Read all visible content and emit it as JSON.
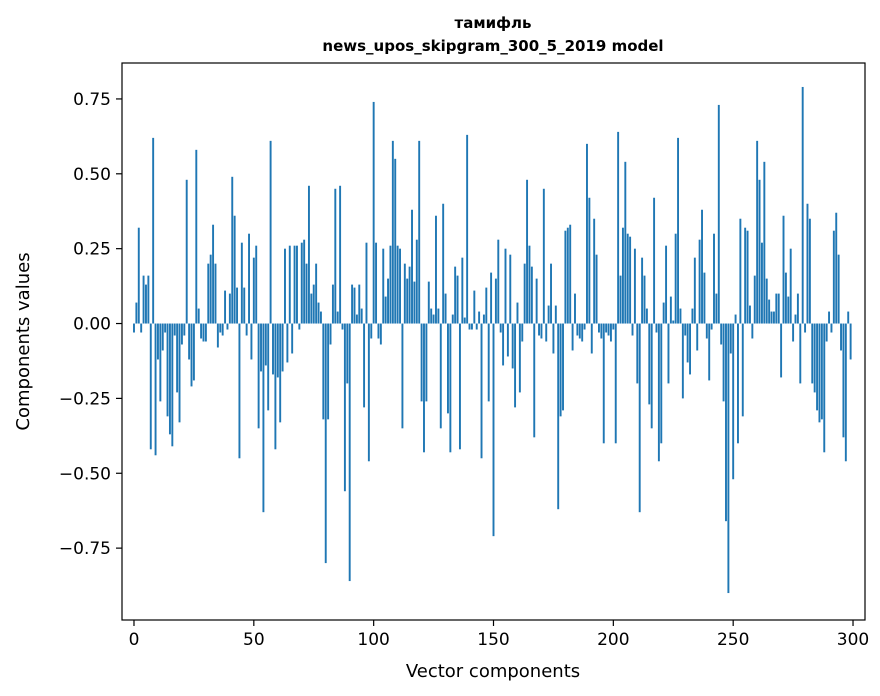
{
  "chart_data": {
    "type": "bar",
    "title": "тамифль",
    "subtitle": "news_upos_skipgram_300_5_2019 model",
    "xlabel": "Vector components",
    "ylabel": "Components values",
    "xlim": [
      -5,
      305
    ],
    "ylim": [
      -0.99,
      0.87
    ],
    "xticks": [
      0,
      50,
      100,
      150,
      200,
      250,
      300
    ],
    "xtick_labels": [
      "0",
      "50",
      "100",
      "150",
      "200",
      "250",
      "300"
    ],
    "yticks": [
      -0.75,
      -0.5,
      -0.25,
      0.0,
      0.25,
      0.5,
      0.75
    ],
    "ytick_labels": [
      "−0.75",
      "−0.50",
      "−0.25",
      "0.00",
      "0.25",
      "0.50",
      "0.75"
    ],
    "bar_color": "#1f77b4",
    "grid": false,
    "x": "0..299",
    "values": [
      -0.03,
      0.07,
      0.32,
      -0.03,
      0.16,
      0.13,
      0.16,
      -0.42,
      0.62,
      -0.44,
      -0.12,
      -0.26,
      -0.09,
      -0.03,
      -0.31,
      -0.37,
      -0.41,
      -0.04,
      -0.23,
      -0.33,
      -0.07,
      -0.04,
      0.48,
      -0.12,
      -0.21,
      -0.19,
      0.58,
      0.05,
      -0.05,
      -0.06,
      -0.06,
      0.2,
      0.23,
      0.33,
      0.2,
      -0.08,
      -0.03,
      -0.04,
      0.11,
      -0.02,
      0.1,
      0.49,
      0.36,
      0.12,
      -0.45,
      0.27,
      0.12,
      -0.04,
      0.3,
      -0.12,
      0.22,
      0.26,
      -0.35,
      -0.16,
      -0.63,
      -0.14,
      -0.29,
      0.61,
      -0.17,
      -0.42,
      -0.18,
      -0.33,
      -0.16,
      0.25,
      -0.13,
      0.26,
      -0.1,
      0.26,
      0.26,
      -0.02,
      0.27,
      0.28,
      0.2,
      0.46,
      0.1,
      0.13,
      0.2,
      0.07,
      0.04,
      -0.32,
      -0.8,
      -0.32,
      -0.07,
      0.13,
      0.45,
      0.04,
      0.46,
      -0.02,
      -0.56,
      -0.2,
      -0.86,
      0.13,
      0.12,
      0.03,
      0.13,
      0.05,
      -0.28,
      0.27,
      -0.46,
      -0.05,
      0.74,
      0.27,
      -0.05,
      -0.07,
      0.25,
      0.09,
      0.15,
      0.26,
      0.61,
      0.55,
      0.26,
      0.25,
      -0.35,
      0.2,
      0.15,
      0.19,
      0.38,
      0.14,
      0.28,
      0.61,
      -0.26,
      -0.43,
      -0.26,
      0.14,
      0.05,
      0.03,
      0.36,
      0.05,
      -0.35,
      0.4,
      0.1,
      -0.3,
      -0.43,
      0.03,
      0.19,
      0.16,
      -0.42,
      0.22,
      0.02,
      0.63,
      -0.02,
      -0.02,
      0.11,
      -0.02,
      0.04,
      -0.45,
      0.03,
      0.12,
      -0.26,
      0.17,
      -0.71,
      0.15,
      0.28,
      -0.03,
      -0.14,
      0.25,
      -0.11,
      0.23,
      -0.15,
      -0.28,
      0.07,
      -0.23,
      -0.06,
      0.2,
      0.48,
      0.26,
      0.19,
      -0.38,
      0.15,
      -0.04,
      -0.05,
      0.45,
      -0.06,
      0.06,
      0.2,
      -0.1,
      0.06,
      -0.62,
      -0.31,
      -0.29,
      0.31,
      0.32,
      0.33,
      -0.09,
      0.1,
      -0.04,
      -0.05,
      -0.06,
      -0.02,
      0.6,
      0.42,
      -0.1,
      0.35,
      0.23,
      -0.03,
      -0.05,
      -0.4,
      -0.03,
      -0.04,
      -0.06,
      -0.02,
      -0.4,
      0.64,
      0.16,
      0.32,
      0.54,
      0.3,
      0.29,
      -0.04,
      0.25,
      -0.2,
      -0.63,
      0.22,
      0.16,
      0.05,
      -0.27,
      -0.35,
      0.42,
      -0.03,
      -0.46,
      -0.4,
      0.07,
      0.26,
      -0.2,
      0.09,
      0.01,
      0.3,
      0.62,
      0.05,
      -0.25,
      -0.04,
      -0.13,
      -0.17,
      0.05,
      0.22,
      -0.09,
      0.28,
      0.38,
      0.17,
      -0.05,
      -0.19,
      -0.02,
      0.3,
      0.1,
      0.73,
      -0.07,
      -0.26,
      -0.66,
      -0.9,
      -0.1,
      -0.52,
      0.03,
      -0.4,
      0.35,
      -0.31,
      0.32,
      0.31,
      0.06,
      -0.05,
      0.16,
      0.61,
      0.48,
      0.27,
      0.54,
      0.15,
      0.08,
      0.04,
      0.04,
      0.1,
      0.1,
      -0.18,
      0.36,
      0.17,
      0.09,
      0.25,
      -0.06,
      0.03,
      0.1,
      -0.2,
      0.79,
      -0.03,
      0.4,
      0.35,
      -0.2,
      -0.23,
      -0.29,
      -0.33,
      -0.32,
      -0.43,
      -0.06,
      0.04,
      -0.03,
      0.31,
      0.37,
      0.23,
      -0.09,
      -0.38,
      -0.46,
      0.04,
      -0.12
    ]
  }
}
